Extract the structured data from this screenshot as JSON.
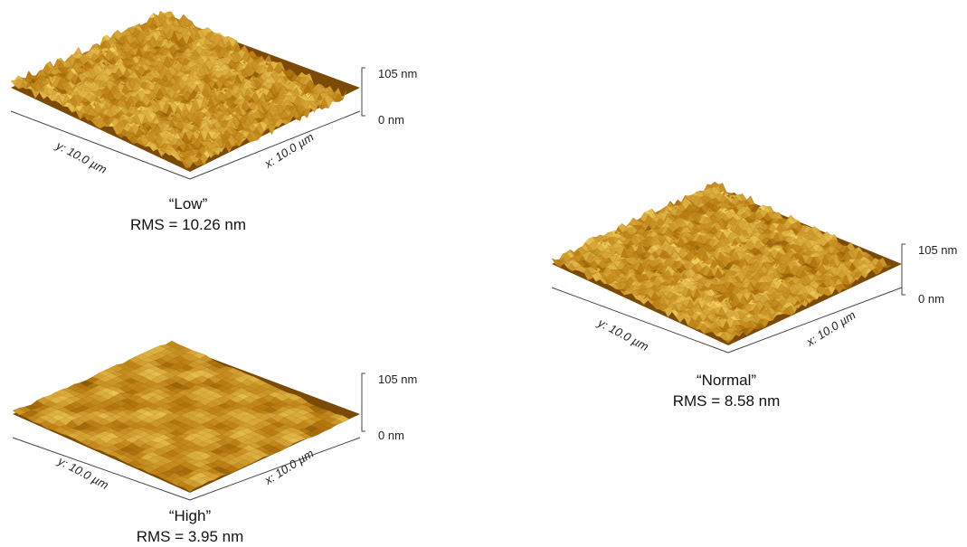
{
  "colors": {
    "surface_dark": "#3a2200",
    "surface_mid": "#b87a10",
    "surface_light": "#f2d060",
    "axis": "#222222"
  },
  "panels": [
    {
      "id": "low",
      "label": "“Low”",
      "rms": "RMS = 10.26 nm",
      "y_axis": "y: 10.0 µm",
      "x_axis": "x: 10.0 µm",
      "z_max": "105 nm",
      "z_min": "0 nm",
      "roughness": 10.26
    },
    {
      "id": "normal",
      "label": "“Normal”",
      "rms": "RMS = 8.58 nm",
      "y_axis": "y: 10.0 µm",
      "x_axis": "x: 10.0 µm",
      "z_max": "105 nm",
      "z_min": "0 nm",
      "roughness": 8.58
    },
    {
      "id": "high",
      "label": "“High”",
      "rms": "RMS = 3.95 nm",
      "y_axis": "y: 10.0 µm",
      "x_axis": "x: 10.0 µm",
      "z_max": "105 nm",
      "z_min": "0 nm",
      "roughness": 3.95
    }
  ]
}
